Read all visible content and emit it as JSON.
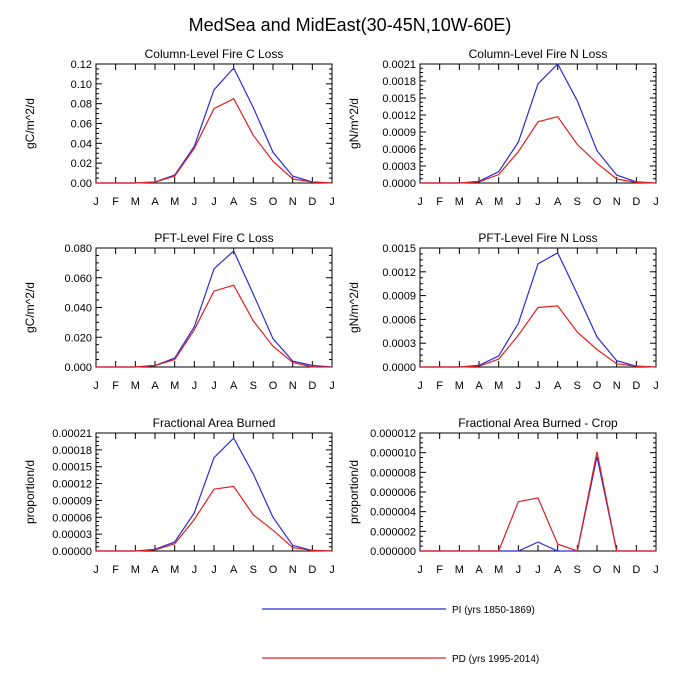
{
  "figure": {
    "title": "MedSea and MidEast(30-45N,10W-60E)"
  },
  "legend": {
    "position": "bottom-center",
    "entries": [
      {
        "label": "PI (yrs 1850-1869)",
        "color": "#2b2bd8"
      },
      {
        "label": "PD (yrs 1995-2014)",
        "color": "#e02020"
      }
    ]
  },
  "chart_data": [
    {
      "type": "line",
      "title": "Column-Level Fire C Loss",
      "ylabel": "gC/m^2/d",
      "xlabel": "",
      "categories": [
        "J",
        "F",
        "M",
        "A",
        "M",
        "J",
        "J",
        "A",
        "S",
        "O",
        "N",
        "D",
        "J"
      ],
      "ylim": [
        0,
        0.12
      ],
      "yticks": [
        "0.00",
        "0.02",
        "0.04",
        "0.06",
        "0.08",
        "0.10",
        "0.12"
      ],
      "series": [
        {
          "name": "PI (yrs 1850-1869)",
          "values": [
            0,
            0,
            0,
            0.001,
            0.008,
            0.037,
            0.094,
            0.116,
            0.076,
            0.031,
            0.007,
            0.001,
            0
          ]
        },
        {
          "name": "PD (yrs 1995-2014)",
          "values": [
            0,
            0,
            0,
            0.001,
            0.007,
            0.035,
            0.075,
            0.085,
            0.048,
            0.022,
            0.004,
            0.001,
            0
          ]
        }
      ]
    },
    {
      "type": "line",
      "title": "Column-Level Fire N Loss",
      "ylabel": "gN/m^2/d",
      "xlabel": "",
      "categories": [
        "J",
        "F",
        "M",
        "A",
        "M",
        "J",
        "J",
        "A",
        "S",
        "O",
        "N",
        "D",
        "J"
      ],
      "ylim": [
        0,
        0.0021
      ],
      "yticks": [
        "0.0000",
        "0.0003",
        "0.0006",
        "0.0009",
        "0.0012",
        "0.0015",
        "0.0018",
        "0.0021"
      ],
      "series": [
        {
          "name": "PI (yrs 1850-1869)",
          "values": [
            0,
            0,
            0,
            3e-05,
            0.0002,
            0.00072,
            0.00175,
            0.0021,
            0.00145,
            0.00057,
            0.00014,
            2e-05,
            0
          ]
        },
        {
          "name": "PD (yrs 1995-2014)",
          "values": [
            0,
            0,
            0,
            2e-05,
            0.00015,
            0.00055,
            0.00108,
            0.00117,
            0.00068,
            0.00035,
            7e-05,
            1e-05,
            0
          ]
        }
      ]
    },
    {
      "type": "line",
      "title": "PFT-Level Fire C Loss",
      "ylabel": "gC/m^2/d",
      "xlabel": "",
      "categories": [
        "J",
        "F",
        "M",
        "A",
        "M",
        "J",
        "J",
        "A",
        "S",
        "O",
        "N",
        "D",
        "J"
      ],
      "ylim": [
        0,
        0.08
      ],
      "yticks": [
        "0.000",
        "0.020",
        "0.040",
        "0.060",
        "0.080"
      ],
      "series": [
        {
          "name": "PI (yrs 1850-1869)",
          "values": [
            0,
            0,
            0,
            0.001,
            0.006,
            0.027,
            0.066,
            0.078,
            0.049,
            0.019,
            0.004,
            0.001,
            0
          ]
        },
        {
          "name": "PD (yrs 1995-2014)",
          "values": [
            0,
            0,
            0,
            0.001,
            0.005,
            0.025,
            0.051,
            0.055,
            0.031,
            0.014,
            0.003,
            0,
            0
          ]
        }
      ]
    },
    {
      "type": "line",
      "title": "PFT-Level Fire N Loss",
      "ylabel": "gN/m^2/d",
      "xlabel": "",
      "categories": [
        "J",
        "F",
        "M",
        "A",
        "M",
        "J",
        "J",
        "A",
        "S",
        "O",
        "N",
        "D",
        "J"
      ],
      "ylim": [
        0,
        0.0015
      ],
      "yticks": [
        "0.0000",
        "0.0003",
        "0.0006",
        "0.0009",
        "0.0012",
        "0.0015"
      ],
      "series": [
        {
          "name": "PI (yrs 1850-1869)",
          "values": [
            0,
            0,
            0,
            2e-05,
            0.00014,
            0.00055,
            0.0013,
            0.00144,
            0.00092,
            0.00038,
            8e-05,
            1e-05,
            0
          ]
        },
        {
          "name": "PD (yrs 1995-2014)",
          "values": [
            0,
            0,
            0,
            1e-05,
            0.0001,
            0.0004,
            0.00075,
            0.00077,
            0.00044,
            0.00022,
            4e-05,
            1e-05,
            0
          ]
        }
      ]
    },
    {
      "type": "line",
      "title": "Fractional Area Burned",
      "ylabel": "proportion/d",
      "xlabel": "",
      "categories": [
        "J",
        "F",
        "M",
        "A",
        "M",
        "J",
        "J",
        "A",
        "S",
        "O",
        "N",
        "D",
        "J"
      ],
      "ylim": [
        0,
        0.00021
      ],
      "yticks": [
        "0.00000",
        "0.00003",
        "0.00006",
        "0.00009",
        "0.00012",
        "0.00015",
        "0.00018",
        "0.00021"
      ],
      "series": [
        {
          "name": "PI (yrs 1850-1869)",
          "values": [
            0,
            0,
            0,
            3e-06,
            1.6e-05,
            6.8e-05,
            0.000166,
            0.000201,
            0.000137,
            6e-05,
            1e-05,
            1e-06,
            0
          ]
        },
        {
          "name": "PD (yrs 1995-2014)",
          "values": [
            0,
            0,
            0,
            2e-06,
            1.3e-05,
            5.6e-05,
            0.00011,
            0.000115,
            6.4e-05,
            3.7e-05,
            6e-06,
            1e-06,
            0
          ]
        }
      ]
    },
    {
      "type": "line",
      "title": "Fractional Area Burned - Crop",
      "ylabel": "proportion/d",
      "xlabel": "",
      "categories": [
        "J",
        "F",
        "M",
        "A",
        "M",
        "J",
        "J",
        "A",
        "S",
        "O",
        "N",
        "D",
        "J"
      ],
      "ylim": [
        0,
        1.2e-05
      ],
      "yticks": [
        "0.000000",
        "0.000002",
        "0.000004",
        "0.000006",
        "0.000008",
        "0.000010",
        "0.000012"
      ],
      "series": [
        {
          "name": "PI (yrs 1850-1869)",
          "values": [
            0,
            0,
            0,
            0,
            0,
            0,
            9e-07,
            0,
            0,
            9.6e-06,
            0,
            0,
            0
          ]
        },
        {
          "name": "PD (yrs 1995-2014)",
          "values": [
            0,
            0,
            0,
            0,
            0,
            5e-06,
            5.4e-06,
            7e-07,
            0,
            1.01e-05,
            0,
            0,
            0
          ]
        }
      ]
    }
  ]
}
